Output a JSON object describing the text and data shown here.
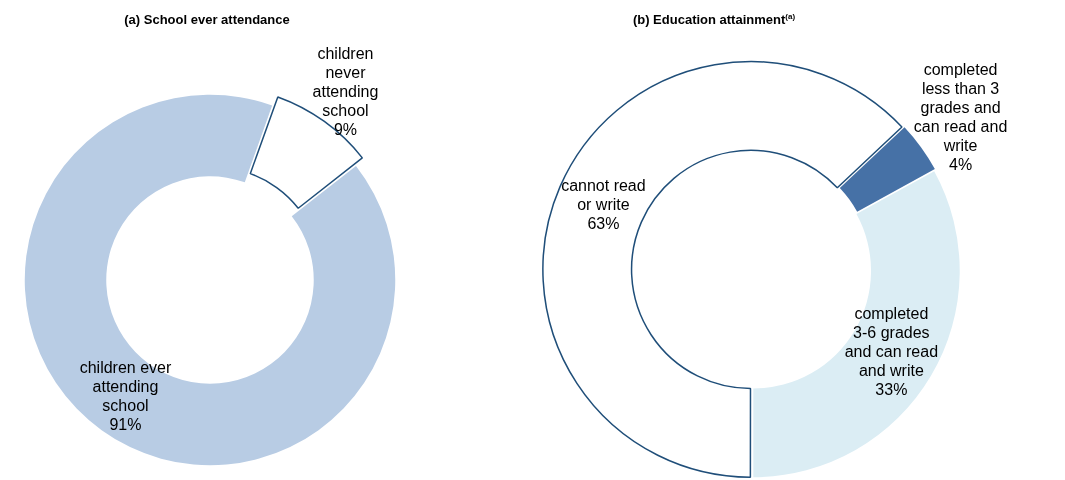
{
  "chart_data": [
    {
      "type": "donut",
      "title": "(a) School ever attendance",
      "categories": [
        "children ever attending school",
        "children never attending school"
      ],
      "values": [
        91,
        9
      ],
      "colors": [
        "#b8cce4",
        "#ffffff"
      ],
      "value_labels": [
        "91%",
        "9%"
      ]
    },
    {
      "type": "donut",
      "title": "(b) Education attainment$^{(a)}$",
      "categories": [
        "cannot read or write",
        "completed less than 3 grades and can read and write",
        "completed 3-6 grades and can read and write"
      ],
      "values": [
        63,
        4,
        33
      ],
      "colors": [
        "#ffffff",
        "#4671a6",
        "#dbedf4"
      ],
      "value_labels": [
        "63%",
        "4%",
        "33%"
      ]
    }
  ]
}
